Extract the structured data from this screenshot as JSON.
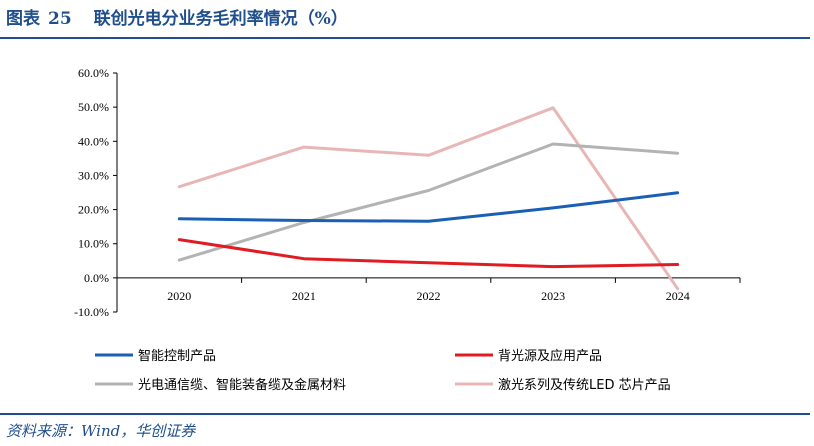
{
  "header": {
    "figure_label": "图表",
    "figure_number": "25",
    "title": "联创光电分业务毛利率情况（%）"
  },
  "footer": {
    "source": "资料来源：Wind，华创证券"
  },
  "colors": {
    "header_blue": "#1f4e8c",
    "series": [
      "#1a5fb4",
      "#e01b24",
      "#b3b3b3",
      "#e8b6b6"
    ]
  },
  "chart_data": {
    "type": "line",
    "title": "",
    "xlabel": "",
    "ylabel": "",
    "categories": [
      "2020",
      "2021",
      "2022",
      "2023",
      "2024"
    ],
    "ylim": [
      -10,
      60
    ],
    "yticks": [
      -10,
      0,
      10,
      20,
      30,
      40,
      50,
      60
    ],
    "ytick_labels": [
      "-10.0%",
      "0.0%",
      "10.0%",
      "20.0%",
      "30.0%",
      "40.0%",
      "50.0%",
      "60.0%"
    ],
    "grid": false,
    "legend_position": "bottom",
    "series": [
      {
        "name": "智能控制产品",
        "color": "#1a5fb4",
        "values": [
          17.3,
          16.8,
          16.6,
          20.5,
          24.9
        ]
      },
      {
        "name": "背光源及应用产品",
        "color": "#e01b24",
        "values": [
          11.2,
          5.6,
          4.4,
          3.3,
          3.9
        ]
      },
      {
        "name": "光电通信缆、智能装备缆及金属材料",
        "color": "#b3b3b3",
        "values": [
          5.2,
          16.2,
          25.6,
          39.2,
          36.5
        ]
      },
      {
        "name": "激光系列及传统LED 芯片产品",
        "color": "#e8b6b6",
        "values": [
          26.7,
          38.3,
          35.9,
          49.8,
          -3.2
        ]
      }
    ]
  }
}
